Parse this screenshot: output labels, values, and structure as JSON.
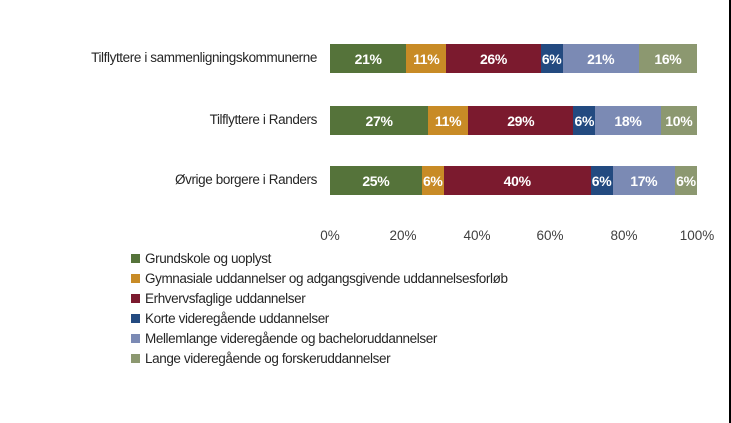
{
  "chart_data": {
    "type": "bar",
    "orientation": "horizontal",
    "stacked": "percent",
    "categories": [
      "Tilflyttere i sammenligningskommunerne",
      "Tilflyttere i Randers",
      "Øvrige borgere i Randers"
    ],
    "series": [
      {
        "name": "Grundskole og uoplyst",
        "color": "#55733a",
        "values": [
          21,
          27,
          25
        ]
      },
      {
        "name": "Gymnasiale uddannelser og adgangsgivende uddannelsesforløb",
        "color": "#c88b26",
        "values": [
          11,
          11,
          6
        ]
      },
      {
        "name": "Erhvervsfaglige uddannelser",
        "color": "#7b1a2e",
        "values": [
          26,
          29,
          40
        ]
      },
      {
        "name": "Korte videregående uddannelser",
        "color": "#234a80",
        "values": [
          6,
          6,
          6
        ]
      },
      {
        "name": "Mellemlange videregående og bacheloruddannelser",
        "color": "#7b8ab4",
        "values": [
          21,
          18,
          17
        ]
      },
      {
        "name": "Lange videregående og forskeruddannelser",
        "color": "#8c9870",
        "values": [
          16,
          10,
          6
        ]
      }
    ],
    "data_labels": [
      [
        "21%",
        "11%",
        "26%",
        "6%",
        "21%",
        "16%"
      ],
      [
        "27%",
        "11%",
        "29%",
        "6%",
        "18%",
        "10%"
      ],
      [
        "25%",
        "6%",
        "40%",
        "6%",
        "17%",
        "6%"
      ]
    ],
    "title": "",
    "xlabel": "",
    "ylabel": "",
    "x_ticks": [
      "0%",
      "20%",
      "40%",
      "60%",
      "80%",
      "100%"
    ],
    "xlim": [
      0,
      100
    ],
    "grid": false,
    "legend_position": "bottom-left"
  }
}
